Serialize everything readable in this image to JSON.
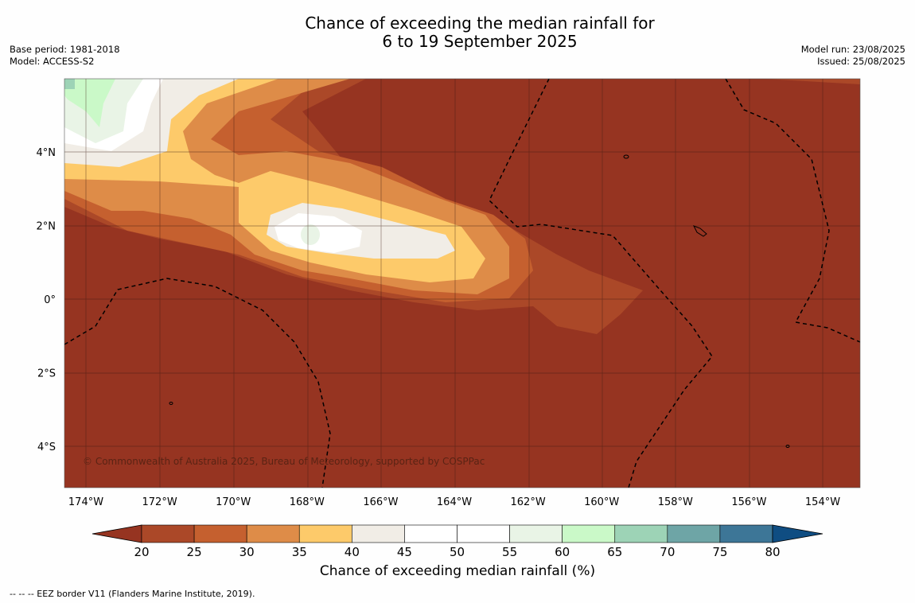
{
  "header": {
    "title_line1": "Chance of exceeding the median rainfall for",
    "title_line2": "6 to 19 September 2025",
    "base_period": "Base period: 1981-2018",
    "model": "Model: ACCESS-S2",
    "model_run": "Model run: 23/08/2025",
    "issued": "Issued: 25/08/2025"
  },
  "map": {
    "lon_ticks": [
      "174°W",
      "172°W",
      "170°W",
      "168°W",
      "166°W",
      "164°W",
      "162°W",
      "160°W",
      "158°W",
      "156°W",
      "154°W"
    ],
    "lat_ticks": [
      "4°N",
      "2°N",
      "0°",
      "2°S",
      "4°S"
    ],
    "copyright": "© Commonwealth of Australia 2025, Bureau of Meteorology, supported by COSPPac",
    "background_color": "#963421"
  },
  "colorbar": {
    "ticks": [
      "20",
      "25",
      "30",
      "35",
      "40",
      "45",
      "50",
      "55",
      "60",
      "65",
      "70",
      "75",
      "80"
    ],
    "colors": [
      "#963421",
      "#ab4828",
      "#c5602f",
      "#de8c48",
      "#fdca6a",
      "#f1ede6",
      "#ffffff",
      "#ffffff",
      "#e9f4e6",
      "#caf9c8",
      "#9dd3b6",
      "#6ea5a6",
      "#3d7697",
      "#0f4d82"
    ],
    "label": "Chance of exceeding median rainfall (%)"
  },
  "footer": {
    "eez_note": "--  --  -- EEZ border V11 (Flanders Marine Institute, 2019)."
  }
}
